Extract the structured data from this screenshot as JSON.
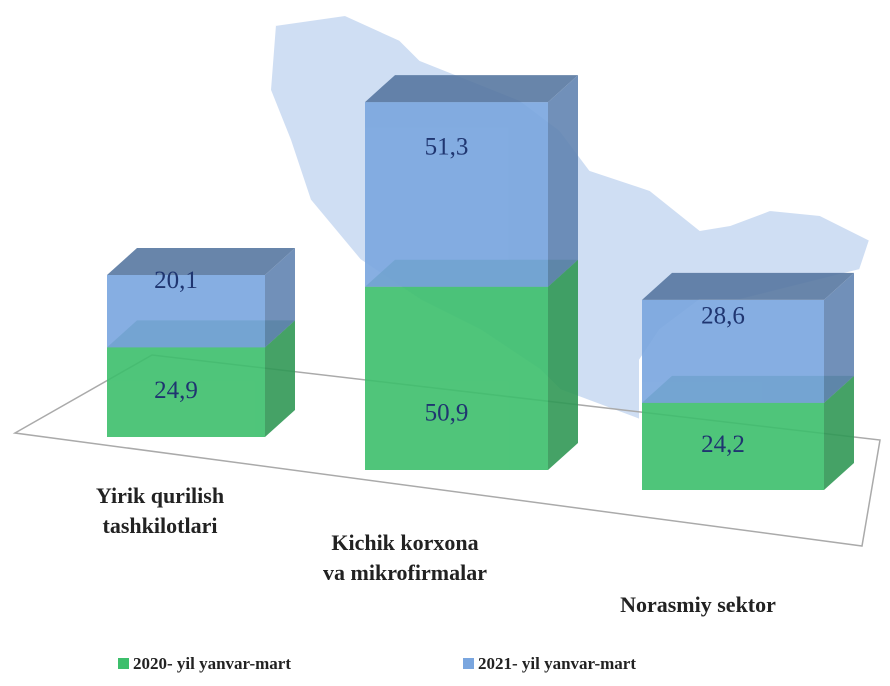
{
  "chart_data": {
    "type": "bar3d_stacked",
    "categories": [
      [
        "Yirik qurilish",
        "tashkilotlari"
      ],
      [
        "Kichik korxona",
        "va mikrofirmalar"
      ],
      [
        "Norasmiy sektor"
      ]
    ],
    "series": [
      {
        "name": "2020- yil yanvar-mart",
        "color": "#3dbf6c",
        "values": [
          24.9,
          50.9,
          24.2
        ],
        "value_labels": [
          "24,9",
          "50,9",
          "24,2"
        ]
      },
      {
        "name": "2021- yil yanvar-mart",
        "color": "#7aa6df",
        "values": [
          20.1,
          51.3,
          28.6
        ],
        "value_labels": [
          "20,1",
          "51,3",
          "28,6"
        ]
      }
    ],
    "stacked": true
  }
}
